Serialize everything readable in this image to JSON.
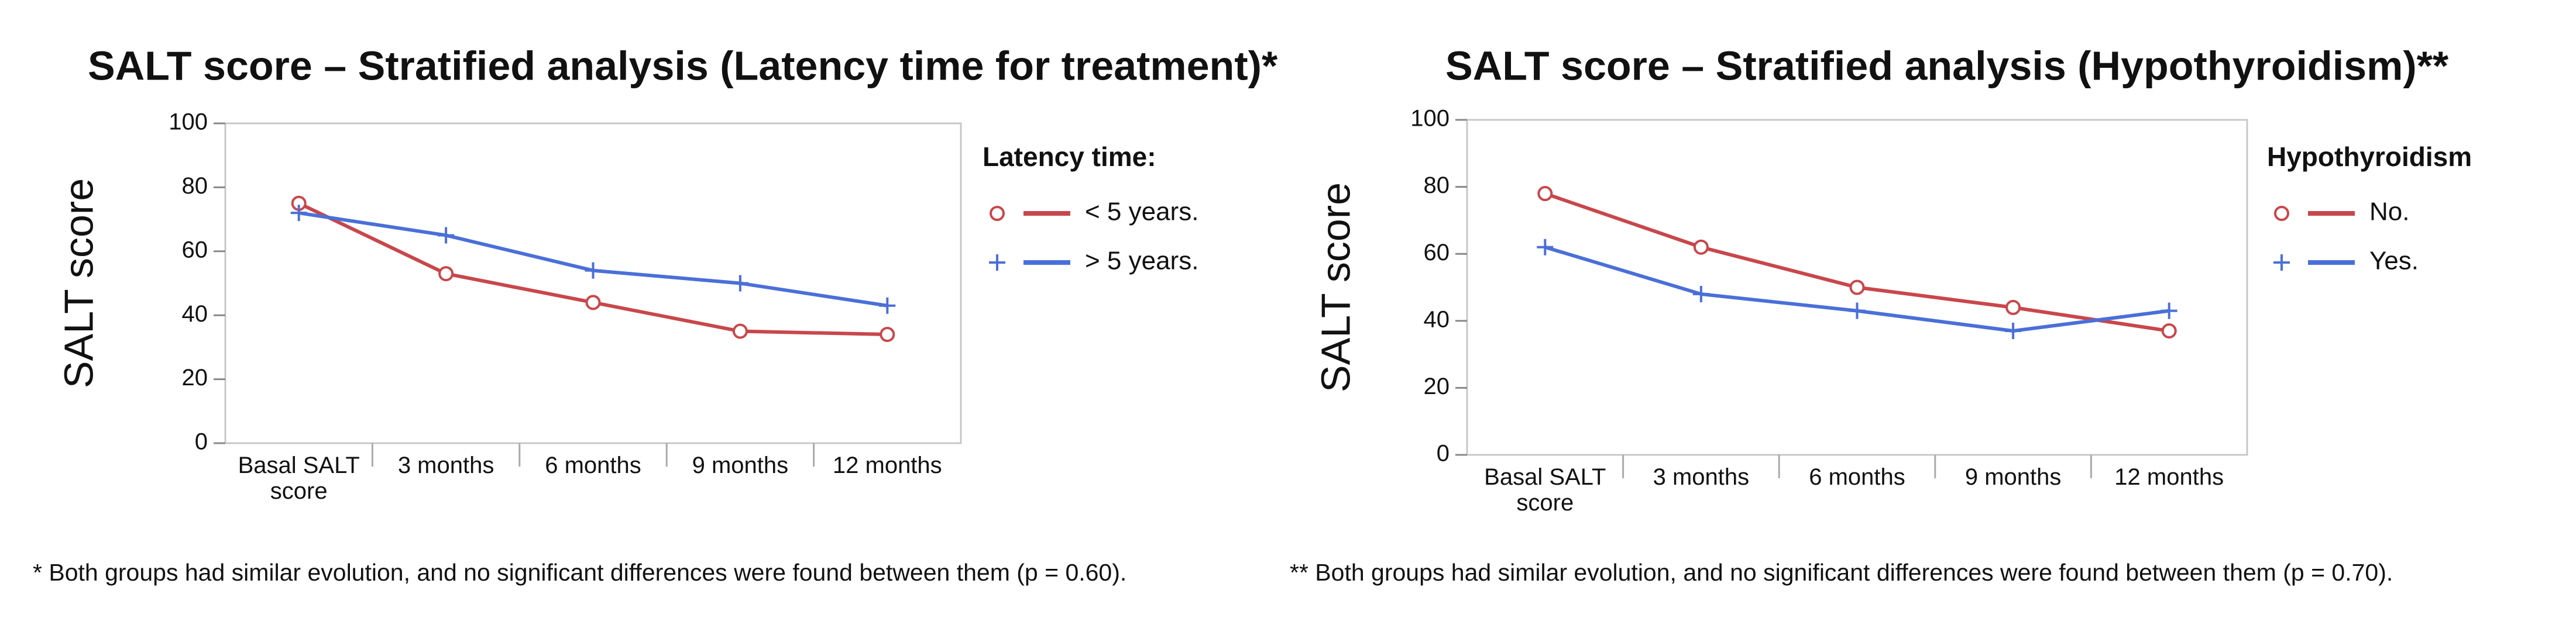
{
  "chart_data": [
    {
      "type": "line",
      "title": "SALT score – Stratified analysis (Latency time for treatment)*",
      "y_label": "SALT score",
      "legend_title": "Latency time:",
      "categories": [
        "Basal SALT score",
        "3 months",
        "6 months",
        "9 months",
        "12 months"
      ],
      "series": [
        {
          "name": "< 5 years.",
          "color": "#c8474b",
          "marker": "circle",
          "values": [
            75,
            53,
            44,
            35,
            34
          ]
        },
        {
          "name": "> 5 years.",
          "color": "#4a6fd8",
          "marker": "plus",
          "values": [
            72,
            65,
            54,
            50,
            43
          ]
        }
      ],
      "ylim": [
        0,
        100
      ],
      "yticks": [
        0,
        20,
        40,
        60,
        80,
        100
      ],
      "grid": false,
      "footnote": "* Both groups had similar evolution, and no significant differences were found between them (p = 0.60)."
    },
    {
      "type": "line",
      "title": "SALT score – Stratified analysis (Hypothyroidism)**",
      "y_label": "SALT score",
      "legend_title": "Hypothyroidism",
      "categories": [
        "Basal SALT score",
        "3 months",
        "6 months",
        "9 months",
        "12 months"
      ],
      "series": [
        {
          "name": "No.",
          "color": "#c8474b",
          "marker": "circle",
          "values": [
            78,
            62,
            50,
            44,
            37
          ]
        },
        {
          "name": "Yes.",
          "color": "#4a6fd8",
          "marker": "plus",
          "values": [
            62,
            48,
            43,
            37,
            43
          ]
        }
      ],
      "ylim": [
        0,
        100
      ],
      "yticks": [
        0,
        20,
        40,
        60,
        80,
        100
      ],
      "grid": false,
      "footnote": "** Both groups had similar evolution, and no significant differences were found between them (p = 0.70)."
    }
  ]
}
